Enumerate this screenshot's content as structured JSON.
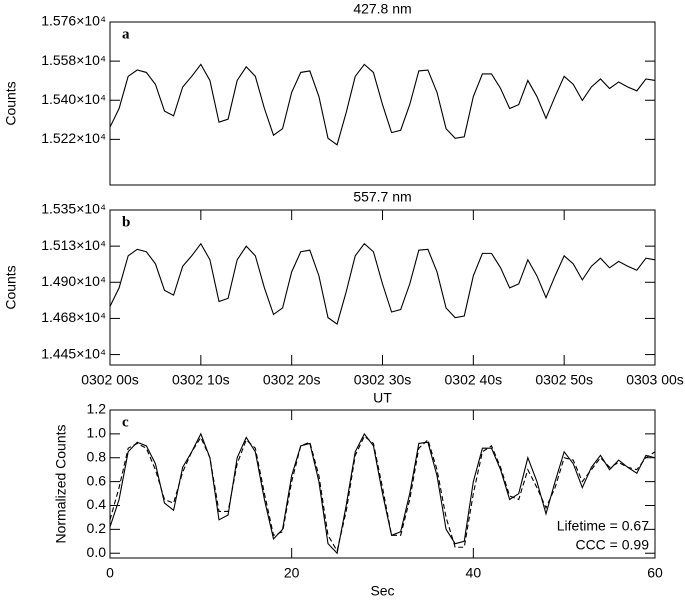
{
  "chart_data": [
    {
      "type": "line",
      "title": "427.8 nm",
      "panel_label": "a",
      "ylabel": "Counts",
      "xlim": [
        0,
        60
      ],
      "ylim": [
        15010,
        15760
      ],
      "yticks": [
        {
          "value": 15220,
          "label": "1.522×10⁴"
        },
        {
          "value": 15400,
          "label": "1.540×10⁴"
        },
        {
          "value": 15580,
          "label": "1.558×10⁴"
        },
        {
          "value": 15760,
          "label": "1.576×10⁴"
        }
      ],
      "x": [
        0,
        1,
        2,
        3,
        4,
        5,
        6,
        7,
        8,
        9,
        10,
        11,
        12,
        13,
        14,
        15,
        16,
        17,
        18,
        19,
        20,
        21,
        22,
        23,
        24,
        25,
        26,
        27,
        28,
        29,
        30,
        31,
        32,
        33,
        34,
        35,
        36,
        37,
        38,
        39,
        40,
        41,
        42,
        43,
        44,
        45,
        46,
        47,
        48,
        49,
        50,
        51,
        52,
        53,
        54,
        55,
        56,
        57,
        58,
        59,
        60
      ],
      "series": [
        {
          "color": "#000000",
          "line_style": "solid",
          "values": [
            15276,
            15362,
            15510,
            15539,
            15528,
            15473,
            15350,
            15328,
            15461,
            15510,
            15565,
            15491,
            15299,
            15313,
            15491,
            15554,
            15510,
            15362,
            15239,
            15269,
            15436,
            15528,
            15535,
            15417,
            15225,
            15195,
            15343,
            15510,
            15565,
            15528,
            15380,
            15251,
            15262,
            15380,
            15535,
            15539,
            15436,
            15269,
            15225,
            15232,
            15417,
            15521,
            15521,
            15454,
            15362,
            15380,
            15491,
            15417,
            15317,
            15417,
            15510,
            15473,
            15399,
            15461,
            15498,
            15454,
            15484,
            15461,
            15443,
            15498,
            15491
          ]
        }
      ]
    },
    {
      "type": "line",
      "title": "557.7 nm",
      "panel_label": "b",
      "ylabel": "Counts",
      "xlabel": "UT",
      "xlim": [
        0,
        60
      ],
      "ylim": [
        14385,
        15350
      ],
      "xticks": [
        {
          "value": 0,
          "label": "0302 00s"
        },
        {
          "value": 10,
          "label": "0302 10s"
        },
        {
          "value": 20,
          "label": "0302 20s"
        },
        {
          "value": 30,
          "label": "0302 30s"
        },
        {
          "value": 40,
          "label": "0302 40s"
        },
        {
          "value": 50,
          "label": "0302 50s"
        },
        {
          "value": 60,
          "label": "0303 00s"
        }
      ],
      "yticks": [
        {
          "value": 14450,
          "label": "1.445×10⁴"
        },
        {
          "value": 14675,
          "label": "1.468×10⁴"
        },
        {
          "value": 14900,
          "label": "1.490×10⁴"
        },
        {
          "value": 15125,
          "label": "1.513×10⁴"
        },
        {
          "value": 15350,
          "label": "1.535×10⁴"
        }
      ],
      "x": [
        0,
        1,
        2,
        3,
        4,
        5,
        6,
        7,
        8,
        9,
        10,
        11,
        12,
        13,
        14,
        15,
        16,
        17,
        18,
        19,
        20,
        21,
        22,
        23,
        24,
        25,
        26,
        27,
        28,
        29,
        30,
        31,
        32,
        33,
        34,
        35,
        36,
        37,
        38,
        39,
        40,
        41,
        42,
        43,
        44,
        45,
        46,
        47,
        48,
        49,
        50,
        51,
        52,
        53,
        54,
        55,
        56,
        57,
        58,
        59,
        60
      ],
      "series": [
        {
          "color": "#000000",
          "line_style": "solid",
          "values": [
            14750,
            14865,
            15065,
            15105,
            15090,
            15015,
            14850,
            14820,
            15000,
            15065,
            15140,
            15040,
            14780,
            14800,
            15040,
            15125,
            15065,
            14865,
            14700,
            14740,
            14965,
            15090,
            15100,
            14940,
            14680,
            14640,
            14840,
            15065,
            15140,
            15090,
            14890,
            14715,
            14730,
            14890,
            15100,
            15105,
            14965,
            14740,
            14680,
            14690,
            14940,
            15080,
            15080,
            14990,
            14865,
            14890,
            15040,
            14940,
            14805,
            14940,
            15065,
            15015,
            14915,
            15000,
            15050,
            14990,
            15030,
            15000,
            14975,
            15050,
            15040
          ]
        }
      ]
    },
    {
      "type": "line",
      "panel_label": "c",
      "ylabel": "Normalized Counts",
      "xlabel": "Sec",
      "annotations": [
        "Lifetime = 0.67",
        "CCC = 0.99"
      ],
      "xlim": [
        0,
        60
      ],
      "ylim": [
        -0.04,
        1.2
      ],
      "xticks": [
        0,
        20,
        40,
        60
      ],
      "yticks": [
        {
          "value": 0,
          "label": "0.0"
        },
        0.2,
        0.4,
        0.6,
        0.8,
        {
          "value": 1,
          "label": "1.0"
        },
        1.2
      ],
      "x": [
        0,
        1,
        2,
        3,
        4,
        5,
        6,
        7,
        8,
        9,
        10,
        11,
        12,
        13,
        14,
        15,
        16,
        17,
        18,
        19,
        20,
        21,
        22,
        23,
        24,
        25,
        26,
        27,
        28,
        29,
        30,
        31,
        32,
        33,
        34,
        35,
        36,
        37,
        38,
        39,
        40,
        41,
        42,
        43,
        44,
        45,
        46,
        47,
        48,
        49,
        50,
        51,
        52,
        53,
        54,
        55,
        56,
        57,
        58,
        59,
        60
      ],
      "series": [
        {
          "color": "#000000",
          "line_style": "solid",
          "values": [
            0.22,
            0.45,
            0.85,
            0.93,
            0.9,
            0.75,
            0.42,
            0.36,
            0.72,
            0.85,
            1.0,
            0.8,
            0.28,
            0.32,
            0.8,
            0.97,
            0.85,
            0.45,
            0.12,
            0.2,
            0.65,
            0.9,
            0.92,
            0.6,
            0.08,
            0.0,
            0.4,
            0.85,
            1.0,
            0.9,
            0.5,
            0.15,
            0.18,
            0.5,
            0.92,
            0.93,
            0.65,
            0.2,
            0.08,
            0.1,
            0.6,
            0.88,
            0.88,
            0.7,
            0.45,
            0.5,
            0.8,
            0.6,
            0.33,
            0.6,
            0.85,
            0.75,
            0.55,
            0.72,
            0.82,
            0.7,
            0.78,
            0.72,
            0.67,
            0.82,
            0.8
          ]
        },
        {
          "color": "#000000",
          "line_style": "dashed",
          "values": [
            0.28,
            0.55,
            0.88,
            0.92,
            0.88,
            0.7,
            0.45,
            0.42,
            0.68,
            0.85,
            0.97,
            0.8,
            0.35,
            0.35,
            0.75,
            0.95,
            0.88,
            0.5,
            0.15,
            0.18,
            0.6,
            0.9,
            0.93,
            0.65,
            0.15,
            0.02,
            0.35,
            0.82,
            0.98,
            0.92,
            0.55,
            0.15,
            0.15,
            0.45,
            0.88,
            0.95,
            0.7,
            0.3,
            0.05,
            0.05,
            0.5,
            0.85,
            0.9,
            0.72,
            0.48,
            0.45,
            0.7,
            0.55,
            0.38,
            0.55,
            0.8,
            0.78,
            0.6,
            0.7,
            0.8,
            0.72,
            0.76,
            0.72,
            0.7,
            0.8,
            0.85
          ]
        }
      ]
    }
  ]
}
